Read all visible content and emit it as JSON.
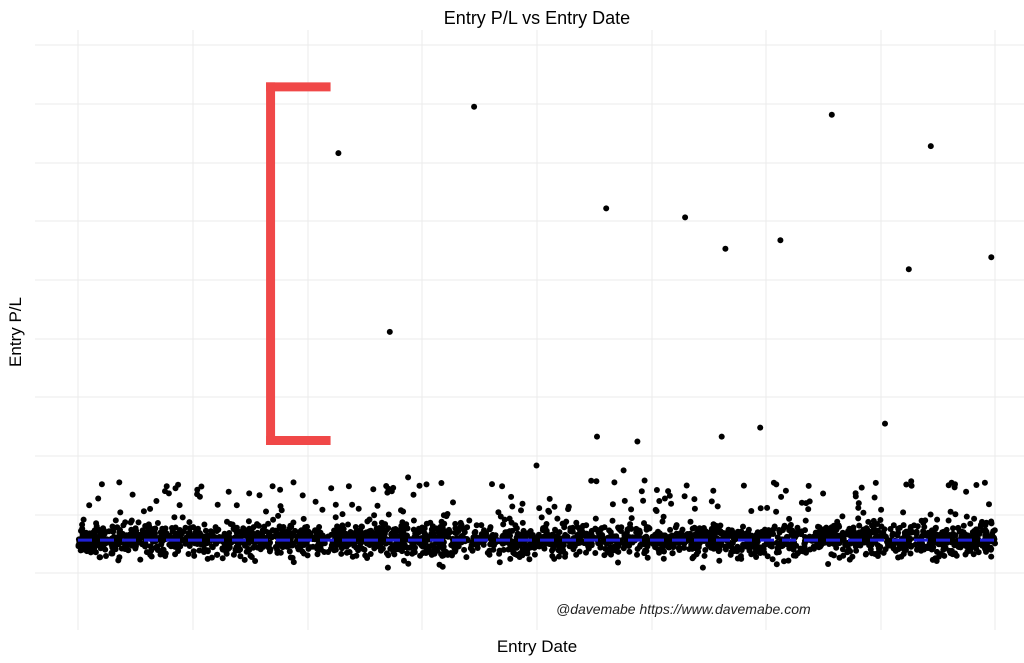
{
  "chart_data": {
    "type": "scatter",
    "title": "Entry P/L vs Entry Date",
    "xlabel": "Entry Date",
    "ylabel": "Entry P/L",
    "watermark": "@davemabe https://www.davemabe.com",
    "x_tick_labels_visible": false,
    "y_tick_labels_visible": false,
    "xlim": [
      0,
      1
    ],
    "ylim": [
      -0.1,
      1.0
    ],
    "grid": true,
    "legend": "none",
    "colors": {
      "points": "#000000",
      "reference_line": "#1f1fd6",
      "bracket": "#f04848"
    },
    "reference_line": {
      "style": "dashed",
      "y": 0
    },
    "bracket_annotation": {
      "y_range": [
        0.2,
        0.91
      ],
      "x": 0.21
    },
    "outliers": [
      {
        "x": 0.284,
        "y": 0.777
      },
      {
        "x": 0.34,
        "y": 0.418
      },
      {
        "x": 0.432,
        "y": 0.87
      },
      {
        "x": 0.576,
        "y": 0.666
      },
      {
        "x": 0.566,
        "y": 0.208
      },
      {
        "x": 0.61,
        "y": 0.198
      },
      {
        "x": 0.662,
        "y": 0.648
      },
      {
        "x": 0.706,
        "y": 0.585
      },
      {
        "x": 0.702,
        "y": 0.208
      },
      {
        "x": 0.744,
        "y": 0.226
      },
      {
        "x": 0.766,
        "y": 0.602
      },
      {
        "x": 0.822,
        "y": 0.854
      },
      {
        "x": 0.88,
        "y": 0.234
      },
      {
        "x": 0.906,
        "y": 0.544
      },
      {
        "x": 0.93,
        "y": 0.791
      },
      {
        "x": 0.996,
        "y": 0.568
      },
      {
        "x": 0.5,
        "y": 0.15
      },
      {
        "x": 0.595,
        "y": 0.14
      },
      {
        "x": 0.585,
        "y": 0.116
      },
      {
        "x": 0.36,
        "y": 0.126
      },
      {
        "x": 0.235,
        "y": 0.116
      },
      {
        "x": 0.87,
        "y": 0.115
      },
      {
        "x": 0.045,
        "y": 0.116
      }
    ],
    "dense_band": {
      "count": 2600,
      "x_range": [
        0,
        1
      ],
      "y_center": 0.0,
      "y_spread": 0.045,
      "y_tail_max": 0.12,
      "y_tail_min": -0.055
    }
  }
}
